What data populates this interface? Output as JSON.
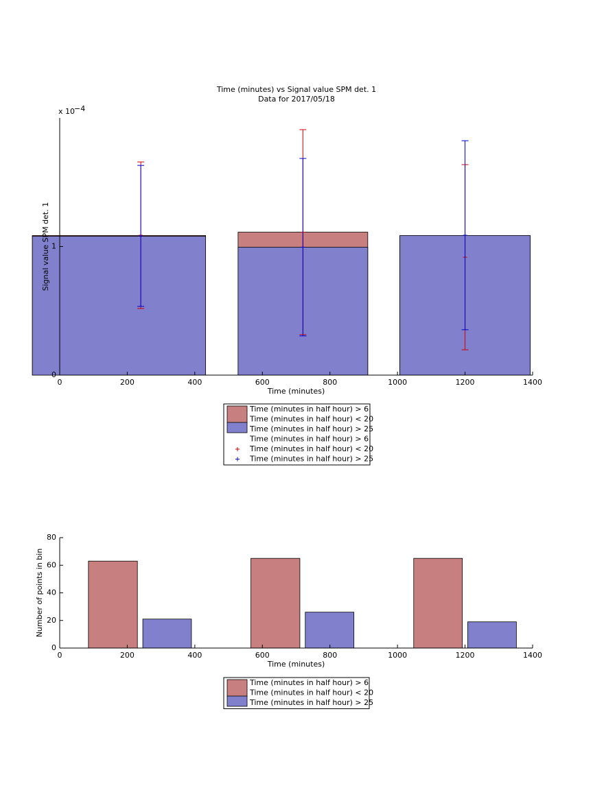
{
  "chart_data": [
    {
      "type": "bar",
      "title": [
        "Time (minutes) vs Signal value SPM det. 1",
        "Data for 2017/05/18"
      ],
      "axis_multiplier": "x 10",
      "axis_exponent": "−4",
      "xlabel": "Time (minutes)",
      "ylabel": "Signal value SPM det. 1",
      "xlim": [
        0,
        1400
      ],
      "xticks": [
        0,
        200,
        400,
        600,
        800,
        1000,
        1200,
        1400
      ],
      "ylim": [
        0,
        2
      ],
      "yticks": [
        0,
        1
      ],
      "series": [
        {
          "name": [
            "Time (minutes in half hour) > 6",
            "Time (minutes in half hour) < 20"
          ],
          "color": "#c77f7f",
          "x_edges": [
            [
              -81,
              432
            ],
            [
              528,
              912
            ],
            [
              1007,
              1393
            ]
          ],
          "values": [
            1.086,
            1.112,
            1.08
          ]
        },
        {
          "name": [
            "Time (minutes in half hour) > 25"
          ],
          "color": "#8080cc",
          "x_edges": [
            [
              -81,
              432
            ],
            [
              528,
              912
            ],
            [
              1007,
              1393
            ]
          ],
          "values": [
            1.08,
            0.995,
            1.086
          ]
        }
      ],
      "errorbars": [
        {
          "name": [
            "Time (minutes in half hour) > 6",
            "Time (minutes in half hour) < 20"
          ],
          "color": "#d00000",
          "x": [
            240,
            720,
            1200
          ],
          "values": [
            1.088,
            1.112,
            0.917
          ],
          "errors": [
            0.57,
            0.797,
            0.72
          ]
        },
        {
          "name": [
            "Time (minutes in half hour) > 25"
          ],
          "color": "#0000d0",
          "x": [
            240,
            720,
            1200
          ],
          "values": [
            1.083,
            0.995,
            1.088
          ],
          "errors": [
            0.548,
            0.69,
            0.735
          ]
        }
      ]
    },
    {
      "type": "bar",
      "xlabel": "Time (minutes)",
      "ylabel": "Number of points in bin",
      "xlim": [
        0,
        1400
      ],
      "xticks": [
        0,
        200,
        400,
        600,
        800,
        1000,
        1200,
        1400
      ],
      "ylim": [
        0,
        80
      ],
      "yticks": [
        0,
        20,
        40,
        60,
        80
      ],
      "series": [
        {
          "name": [
            "Time (minutes in half hour) > 6",
            "Time (minutes in half hour) < 20"
          ],
          "color": "#c77f7f",
          "x_edges": [
            [
              85,
              230
            ],
            [
              566,
              711
            ],
            [
              1048,
              1192
            ]
          ],
          "values": [
            63,
            65,
            65
          ]
        },
        {
          "name": [
            "Time (minutes in half hour) > 25"
          ],
          "color": "#8080cc",
          "x_edges": [
            [
              246,
              390
            ],
            [
              727,
              871
            ],
            [
              1208,
              1352
            ]
          ],
          "values": [
            21,
            26,
            19
          ]
        }
      ]
    }
  ]
}
